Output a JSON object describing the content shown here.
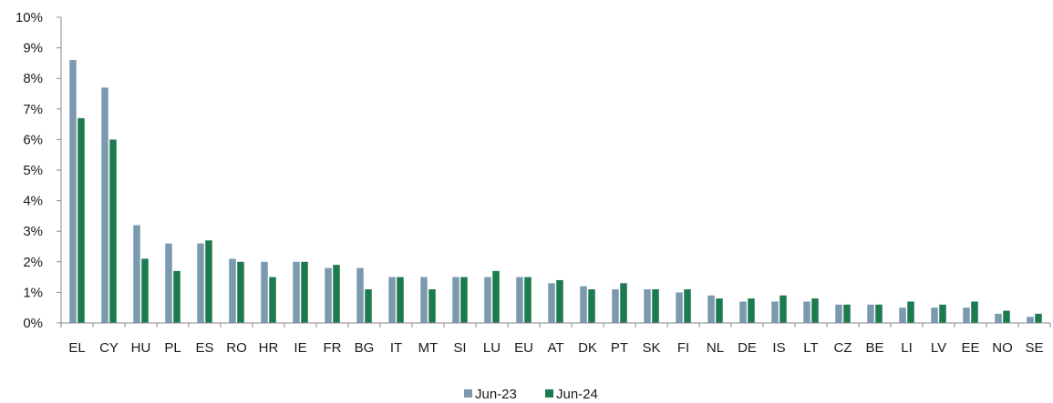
{
  "chart_data": {
    "type": "bar",
    "title": "",
    "xlabel": "",
    "ylabel": "",
    "ylim": [
      0,
      10
    ],
    "y_tick_step": 1,
    "y_tick_format": "percent",
    "grid": false,
    "legend_position": "bottom-center",
    "categories": [
      "EL",
      "CY",
      "HU",
      "PL",
      "ES",
      "RO",
      "HR",
      "IE",
      "FR",
      "BG",
      "IT",
      "MT",
      "SI",
      "LU",
      "EU",
      "AT",
      "DK",
      "PT",
      "SK",
      "FI",
      "NL",
      "DE",
      "IS",
      "LT",
      "CZ",
      "BE",
      "LI",
      "LV",
      "EE",
      "NO",
      "SE"
    ],
    "series": [
      {
        "name": "Jun-23",
        "color": "#7b9aaf",
        "values": [
          8.6,
          7.7,
          3.2,
          2.6,
          2.6,
          2.1,
          2.0,
          2.0,
          1.8,
          1.8,
          1.5,
          1.5,
          1.5,
          1.5,
          1.5,
          1.3,
          1.2,
          1.1,
          1.1,
          1.0,
          0.9,
          0.7,
          0.7,
          0.7,
          0.6,
          0.6,
          0.5,
          0.5,
          0.5,
          0.3,
          0.2
        ]
      },
      {
        "name": "Jun-24",
        "color": "#1c7a4e",
        "values": [
          6.7,
          6.0,
          2.1,
          1.7,
          2.7,
          2.0,
          1.5,
          2.0,
          1.9,
          1.1,
          1.5,
          1.1,
          1.5,
          1.7,
          1.5,
          1.4,
          1.1,
          1.3,
          1.1,
          1.1,
          0.8,
          0.8,
          0.9,
          0.8,
          0.6,
          0.6,
          0.7,
          0.6,
          0.7,
          0.4,
          0.3
        ]
      }
    ]
  }
}
